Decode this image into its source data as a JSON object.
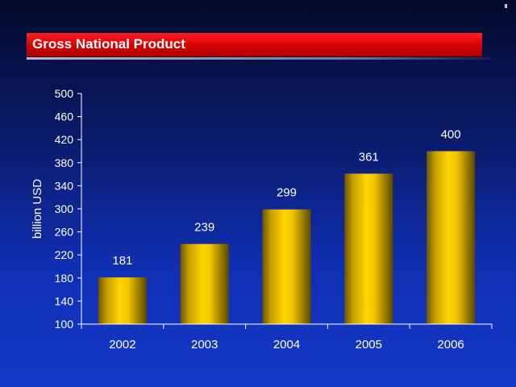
{
  "chart_data": {
    "type": "bar",
    "title": "Gross National Product",
    "ylabel": "billion USD",
    "xlabel": "",
    "categories": [
      "2002",
      "2003",
      "2004",
      "2005",
      "2006"
    ],
    "values": [
      181,
      239,
      299,
      361,
      400
    ],
    "data_labels": [
      "181",
      "239",
      "299",
      "361",
      "400"
    ],
    "ylim": [
      100,
      500
    ],
    "yticks": [
      "100",
      "140",
      "180",
      "220",
      "260",
      "300",
      "340",
      "380",
      "420",
      "460",
      "500"
    ],
    "grid": false,
    "legend": "none",
    "colors": {
      "bar_light": "#ffd200",
      "bar_dark": "#5a4a00",
      "axis": "#ffffff",
      "text": "#ffffff",
      "title_bar": "#e00000"
    }
  }
}
